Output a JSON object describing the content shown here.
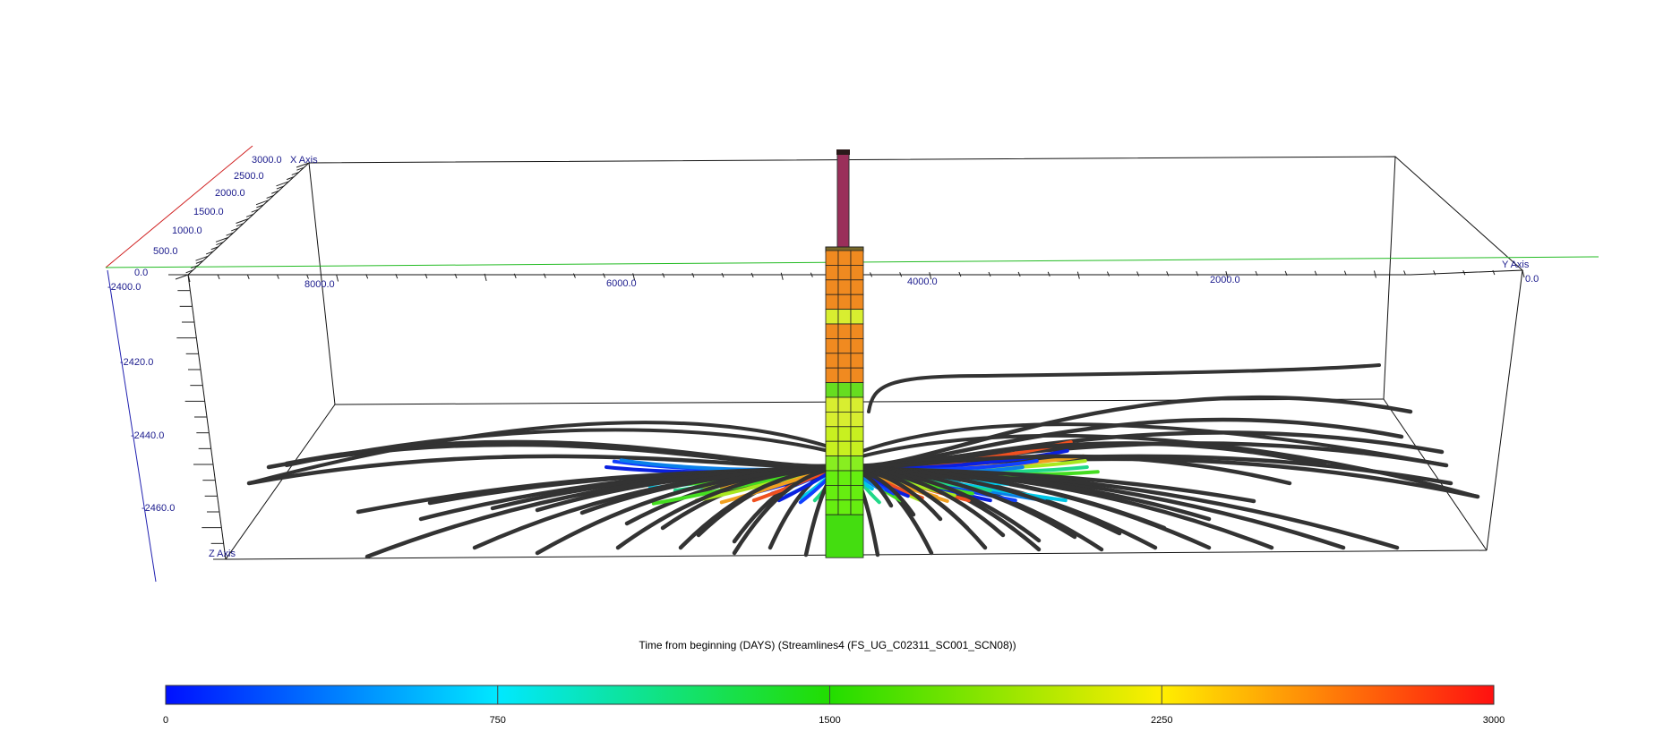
{
  "axes": {
    "x_axis_label": "X Axis",
    "y_axis_label": "Y Axis",
    "z_axis_label": "Z Axis",
    "x_ticks": [
      "3000.0",
      "2500.0",
      "2000.0",
      "1500.0",
      "1000.0",
      "500.0",
      "0.0"
    ],
    "y_ticks": [
      "8000.0",
      "6000.0",
      "4000.0",
      "2000.0",
      "0.0"
    ],
    "z_ticks": [
      "-2400.0",
      "-2420.0",
      "-2440.0",
      "-2460.0"
    ]
  },
  "legend": {
    "title": "Time from beginning (DAYS) (Streamlines4   (FS_UG_C02311_SC001_SCN08))",
    "ticks": [
      "0",
      "750",
      "1500",
      "2250",
      "3000"
    ],
    "colors": [
      "#0010ff",
      "#00e8ff",
      "#22dd00",
      "#ffee00",
      "#ff1010"
    ]
  },
  "colors": {
    "well": "#9a2f5a",
    "streamline_dark": "#333333",
    "box_edge": "#111111",
    "x_axis_line": "#d02020",
    "y_axis_line": "#22bb22",
    "z_axis_line": "#2020b0"
  }
}
